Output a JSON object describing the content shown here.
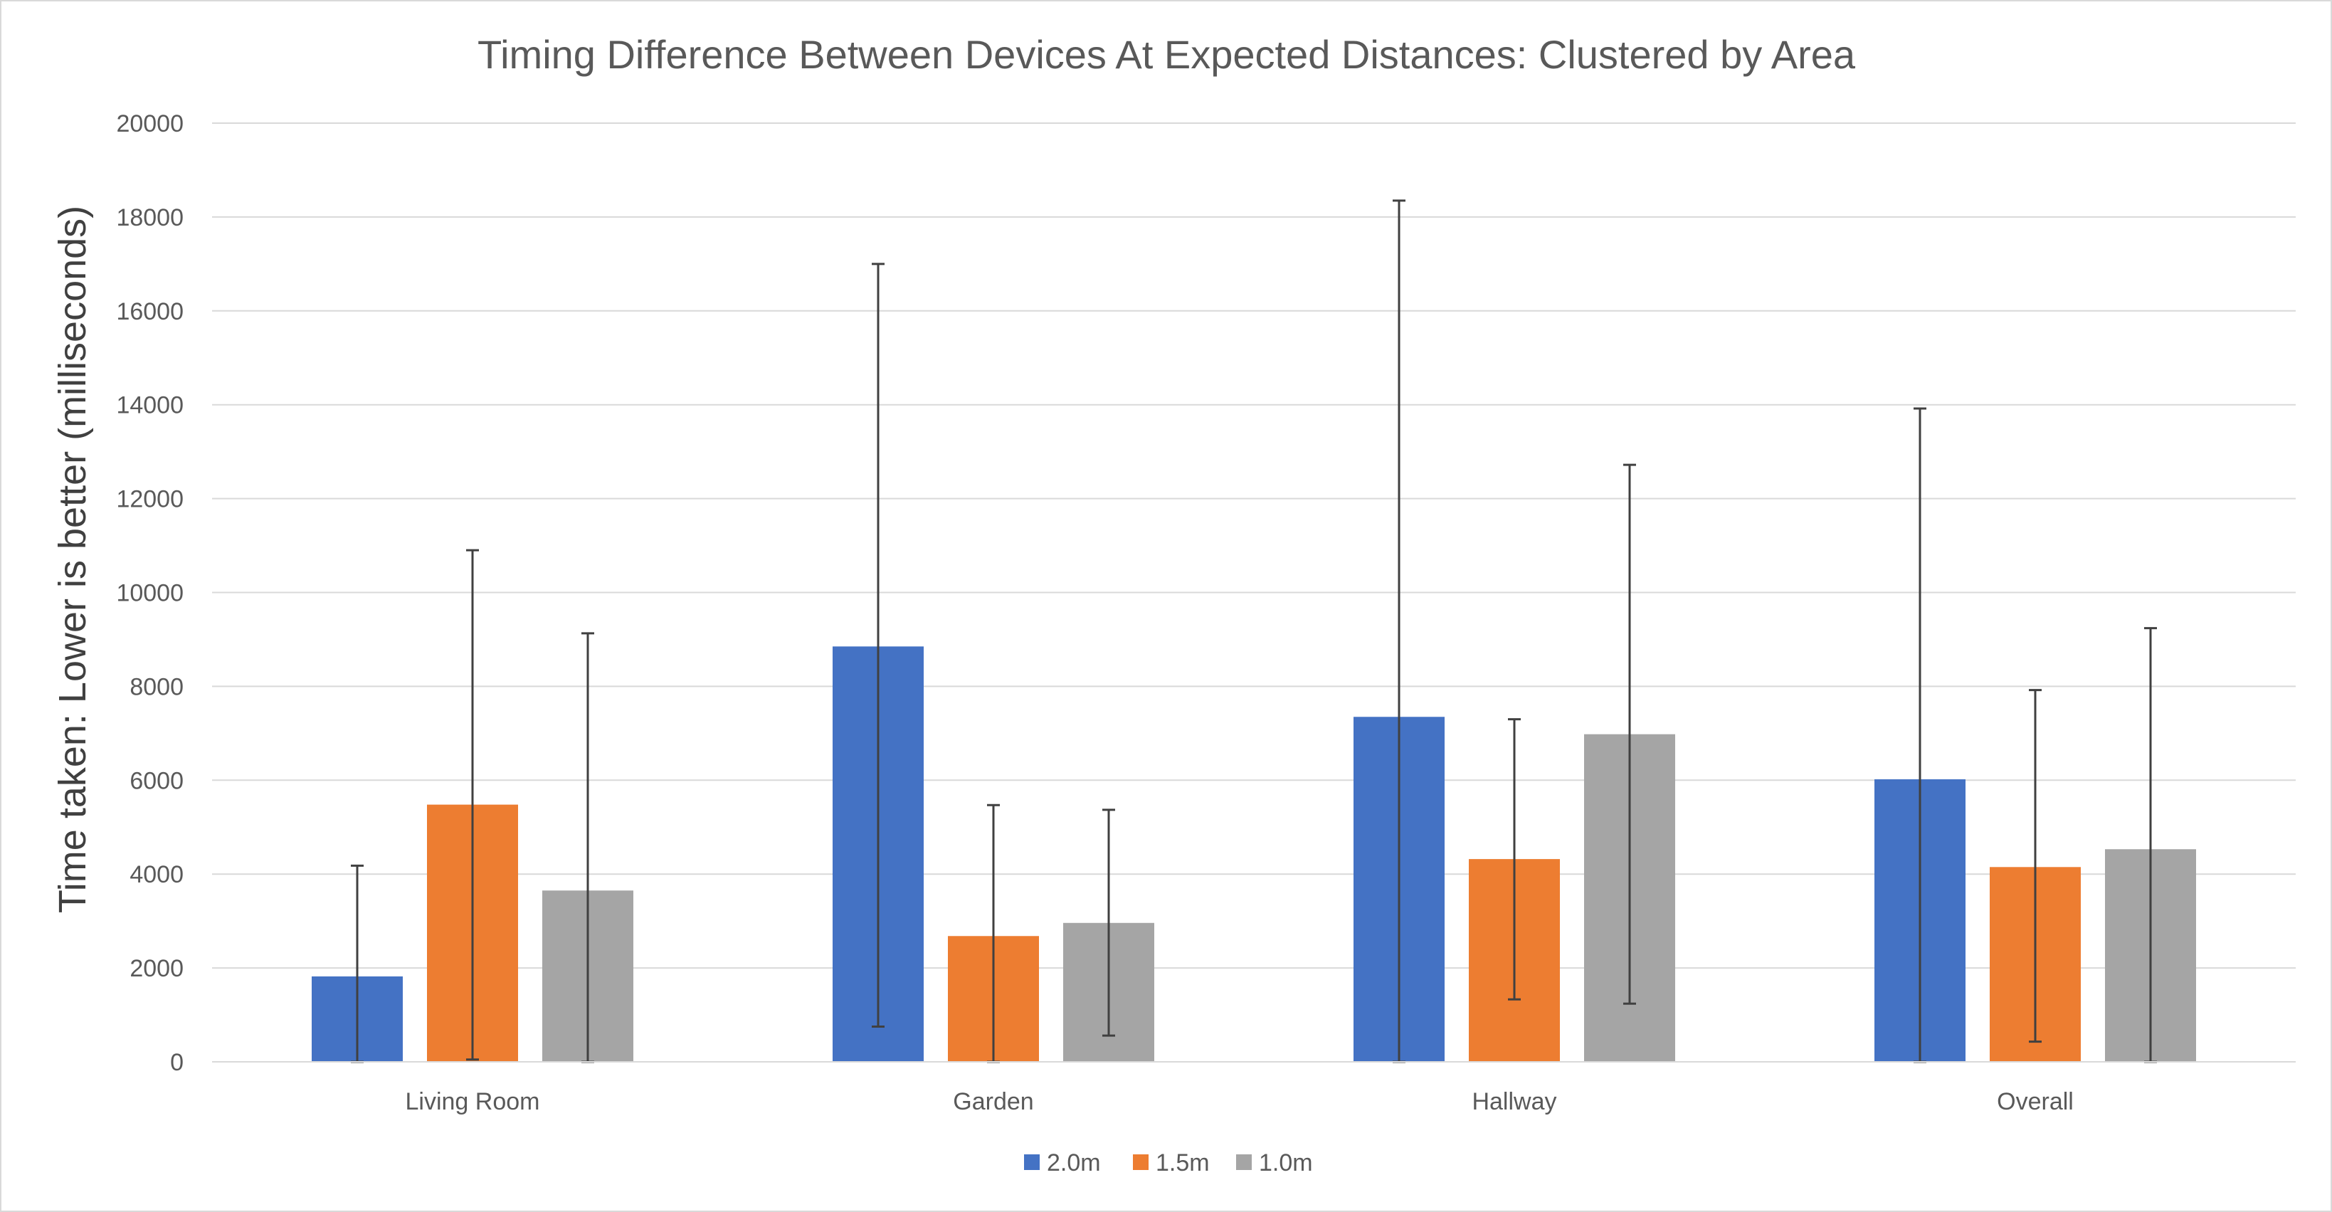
{
  "chart_data": {
    "type": "bar",
    "title": "Timing Difference Between Devices At Expected Distances: Clustered by Area",
    "xlabel": "",
    "ylabel": "Time taken: Lower is better (milliseconds)",
    "ylim": [
      0,
      20000
    ],
    "yticks": [
      "0",
      "2000",
      "4000",
      "6000",
      "8000",
      "10000",
      "12000",
      "14000",
      "16000",
      "18000",
      "20000"
    ],
    "categories": [
      "Living Room",
      "Garden",
      "Hallway",
      "Overall"
    ],
    "grid": true,
    "legend_position": "bottom",
    "series": [
      {
        "name": "2.0m",
        "color": "#4472C4",
        "values": [
          1820,
          8850,
          7350,
          6020
        ],
        "error_low": [
          0,
          750,
          0,
          0
        ],
        "error_high": [
          4180,
          17000,
          18350,
          13920
        ]
      },
      {
        "name": "1.5m",
        "color": "#ED7D31",
        "values": [
          5480,
          2680,
          4320,
          4150
        ],
        "error_low": [
          50,
          0,
          1330,
          430
        ],
        "error_high": [
          10900,
          5470,
          7300,
          7920
        ]
      },
      {
        "name": "1.0m",
        "color": "#A5A5A5",
        "values": [
          3650,
          2960,
          6980,
          4530
        ],
        "error_low": [
          0,
          560,
          1240,
          0
        ],
        "error_high": [
          9130,
          5370,
          12720,
          9240
        ]
      }
    ]
  }
}
